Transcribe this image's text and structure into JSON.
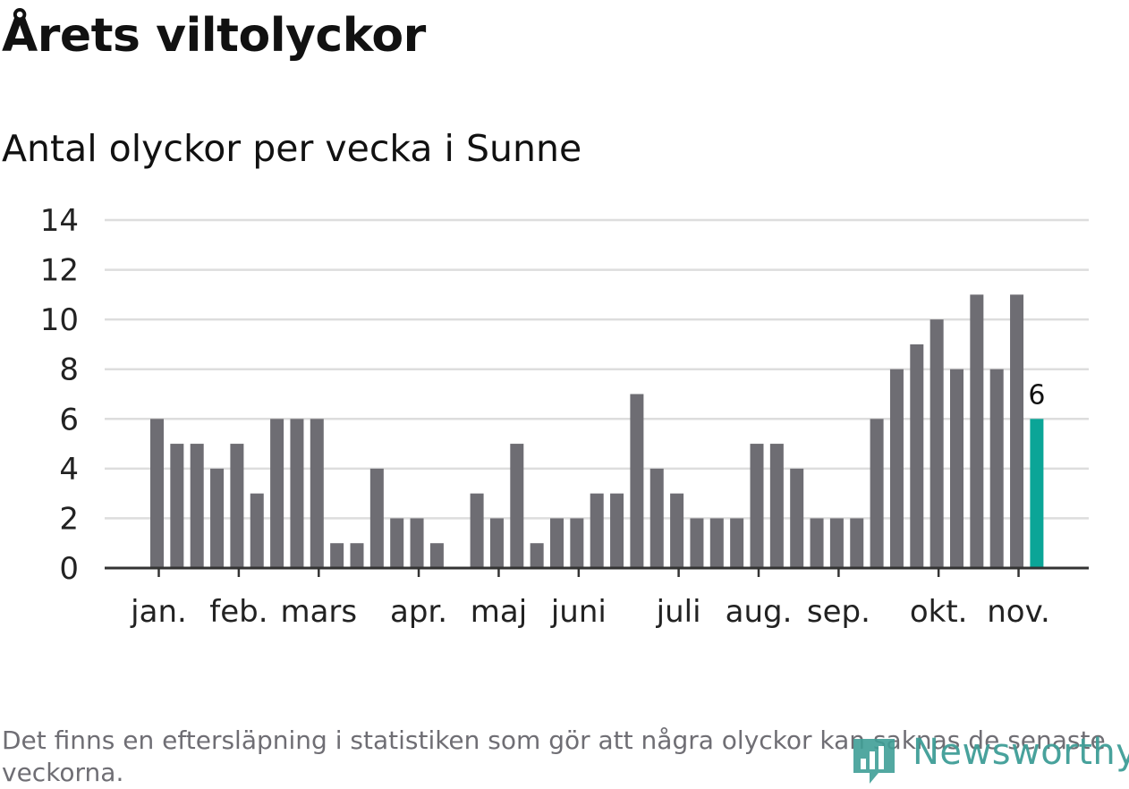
{
  "title": "Årets viltolyckor",
  "subtitle": "Antal olyckor per vecka i Sunne",
  "note": "Det finns en eftersläpning i statistiken som gör att några olyckor kan saknas de senaste veckorna.",
  "brand": "Newsworthy",
  "colors": {
    "bar": "#6e6d73",
    "highlight": "#0ba597",
    "grid": "#dddddd",
    "axis": "#333333",
    "brand": "#3f9e97"
  },
  "chart_data": {
    "type": "bar",
    "ylim": [
      0,
      14
    ],
    "yticks": [
      "0",
      "2",
      "4",
      "6",
      "8",
      "10",
      "12",
      "14"
    ],
    "months": [
      {
        "label": "jan.",
        "week": 1
      },
      {
        "label": "feb.",
        "week": 5
      },
      {
        "label": "mars",
        "week": 9
      },
      {
        "label": "apr.",
        "week": 14
      },
      {
        "label": "maj",
        "week": 18
      },
      {
        "label": "juni",
        "week": 22
      },
      {
        "label": "juli",
        "week": 27
      },
      {
        "label": "aug.",
        "week": 31
      },
      {
        "label": "sep.",
        "week": 35
      },
      {
        "label": "okt.",
        "week": 40
      },
      {
        "label": "nov.",
        "week": 44
      }
    ],
    "values": [
      6,
      5,
      5,
      4,
      5,
      3,
      6,
      6,
      6,
      1,
      1,
      4,
      2,
      2,
      1,
      0,
      3,
      2,
      5,
      1,
      2,
      2,
      3,
      3,
      7,
      4,
      3,
      2,
      2,
      2,
      5,
      5,
      4,
      2,
      2,
      2,
      6,
      8,
      9,
      10,
      8,
      11,
      8,
      11,
      6
    ],
    "highlight_last": true,
    "last_label": "6"
  }
}
